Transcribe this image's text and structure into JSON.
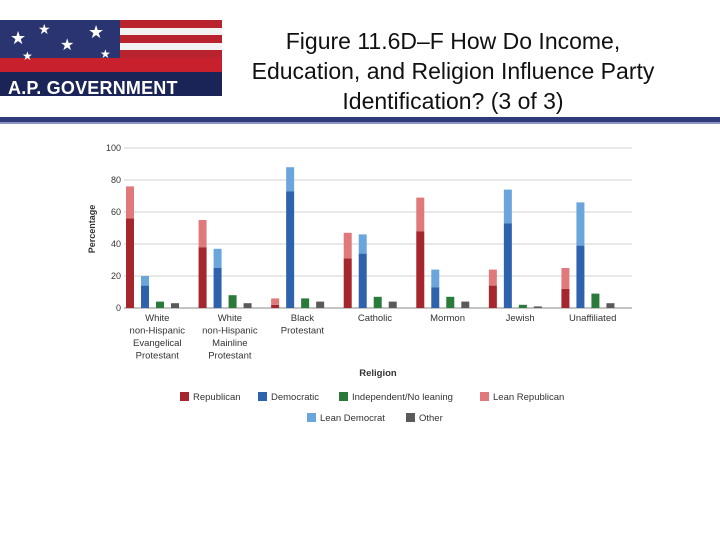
{
  "header": {
    "course_label": "A.P. GOVERNMENT",
    "title": "Figure 11.6D–F How Do Income, Education, and Religion Influence Party Identification? (3 of 3)",
    "title_lines": [
      "Figure 11.6D–F How Do Income,",
      "Education, and Religion Influence Party",
      "Identification? (3 of 3)"
    ]
  },
  "chart_data": {
    "type": "bar",
    "xlabel": "Religion",
    "ylabel": "Percentage",
    "ylim": [
      0,
      100
    ],
    "yticks": [
      0,
      20,
      40,
      60,
      80,
      100
    ],
    "grid": true,
    "legend_position": "bottom",
    "categories": [
      [
        "White",
        "non-Hispanic",
        "Evangelical",
        "Protestant"
      ],
      [
        "White",
        "non-Hispanic",
        "Mainline",
        "Protestant"
      ],
      [
        "Black",
        "Protestant"
      ],
      [
        "Catholic"
      ],
      [
        "Mormon"
      ],
      [
        "Jewish"
      ],
      [
        "Unaffiliated"
      ]
    ],
    "series": [
      {
        "name": "Republican",
        "color": "#a5262c",
        "values": [
          56,
          38,
          2,
          31,
          48,
          14,
          12
        ]
      },
      {
        "name": "Democratic",
        "color": "#2e62ad",
        "values": [
          14,
          25,
          73,
          34,
          13,
          53,
          39
        ]
      },
      {
        "name": "Independent/No leaning",
        "color": "#2a7a3a",
        "values": [
          4,
          8,
          6,
          7,
          7,
          2,
          9
        ]
      },
      {
        "name": "Lean Republican",
        "color": "#e0797c",
        "values": [
          20,
          17,
          4,
          16,
          21,
          10,
          13
        ]
      },
      {
        "name": "Lean Democrat",
        "color": "#6aa6dc",
        "values": [
          6,
          12,
          15,
          12,
          11,
          21,
          27
        ]
      },
      {
        "name": "Other",
        "color": "#5a5a5a",
        "values": [
          3,
          3,
          4,
          4,
          4,
          1,
          3
        ]
      }
    ],
    "bar_groups": [
      {
        "stack": [
          "Republican",
          "Lean Republican"
        ]
      },
      {
        "stack": [
          "Democratic",
          "Lean Democrat"
        ]
      },
      {
        "stack": [
          "Independent/No leaning"
        ]
      },
      {
        "stack": [
          "Other"
        ]
      }
    ],
    "legend_rows": [
      [
        "Republican",
        "Democratic",
        "Independent/No leaning",
        "Lean Republican"
      ],
      [
        "Lean Democrat",
        "Other"
      ]
    ]
  }
}
